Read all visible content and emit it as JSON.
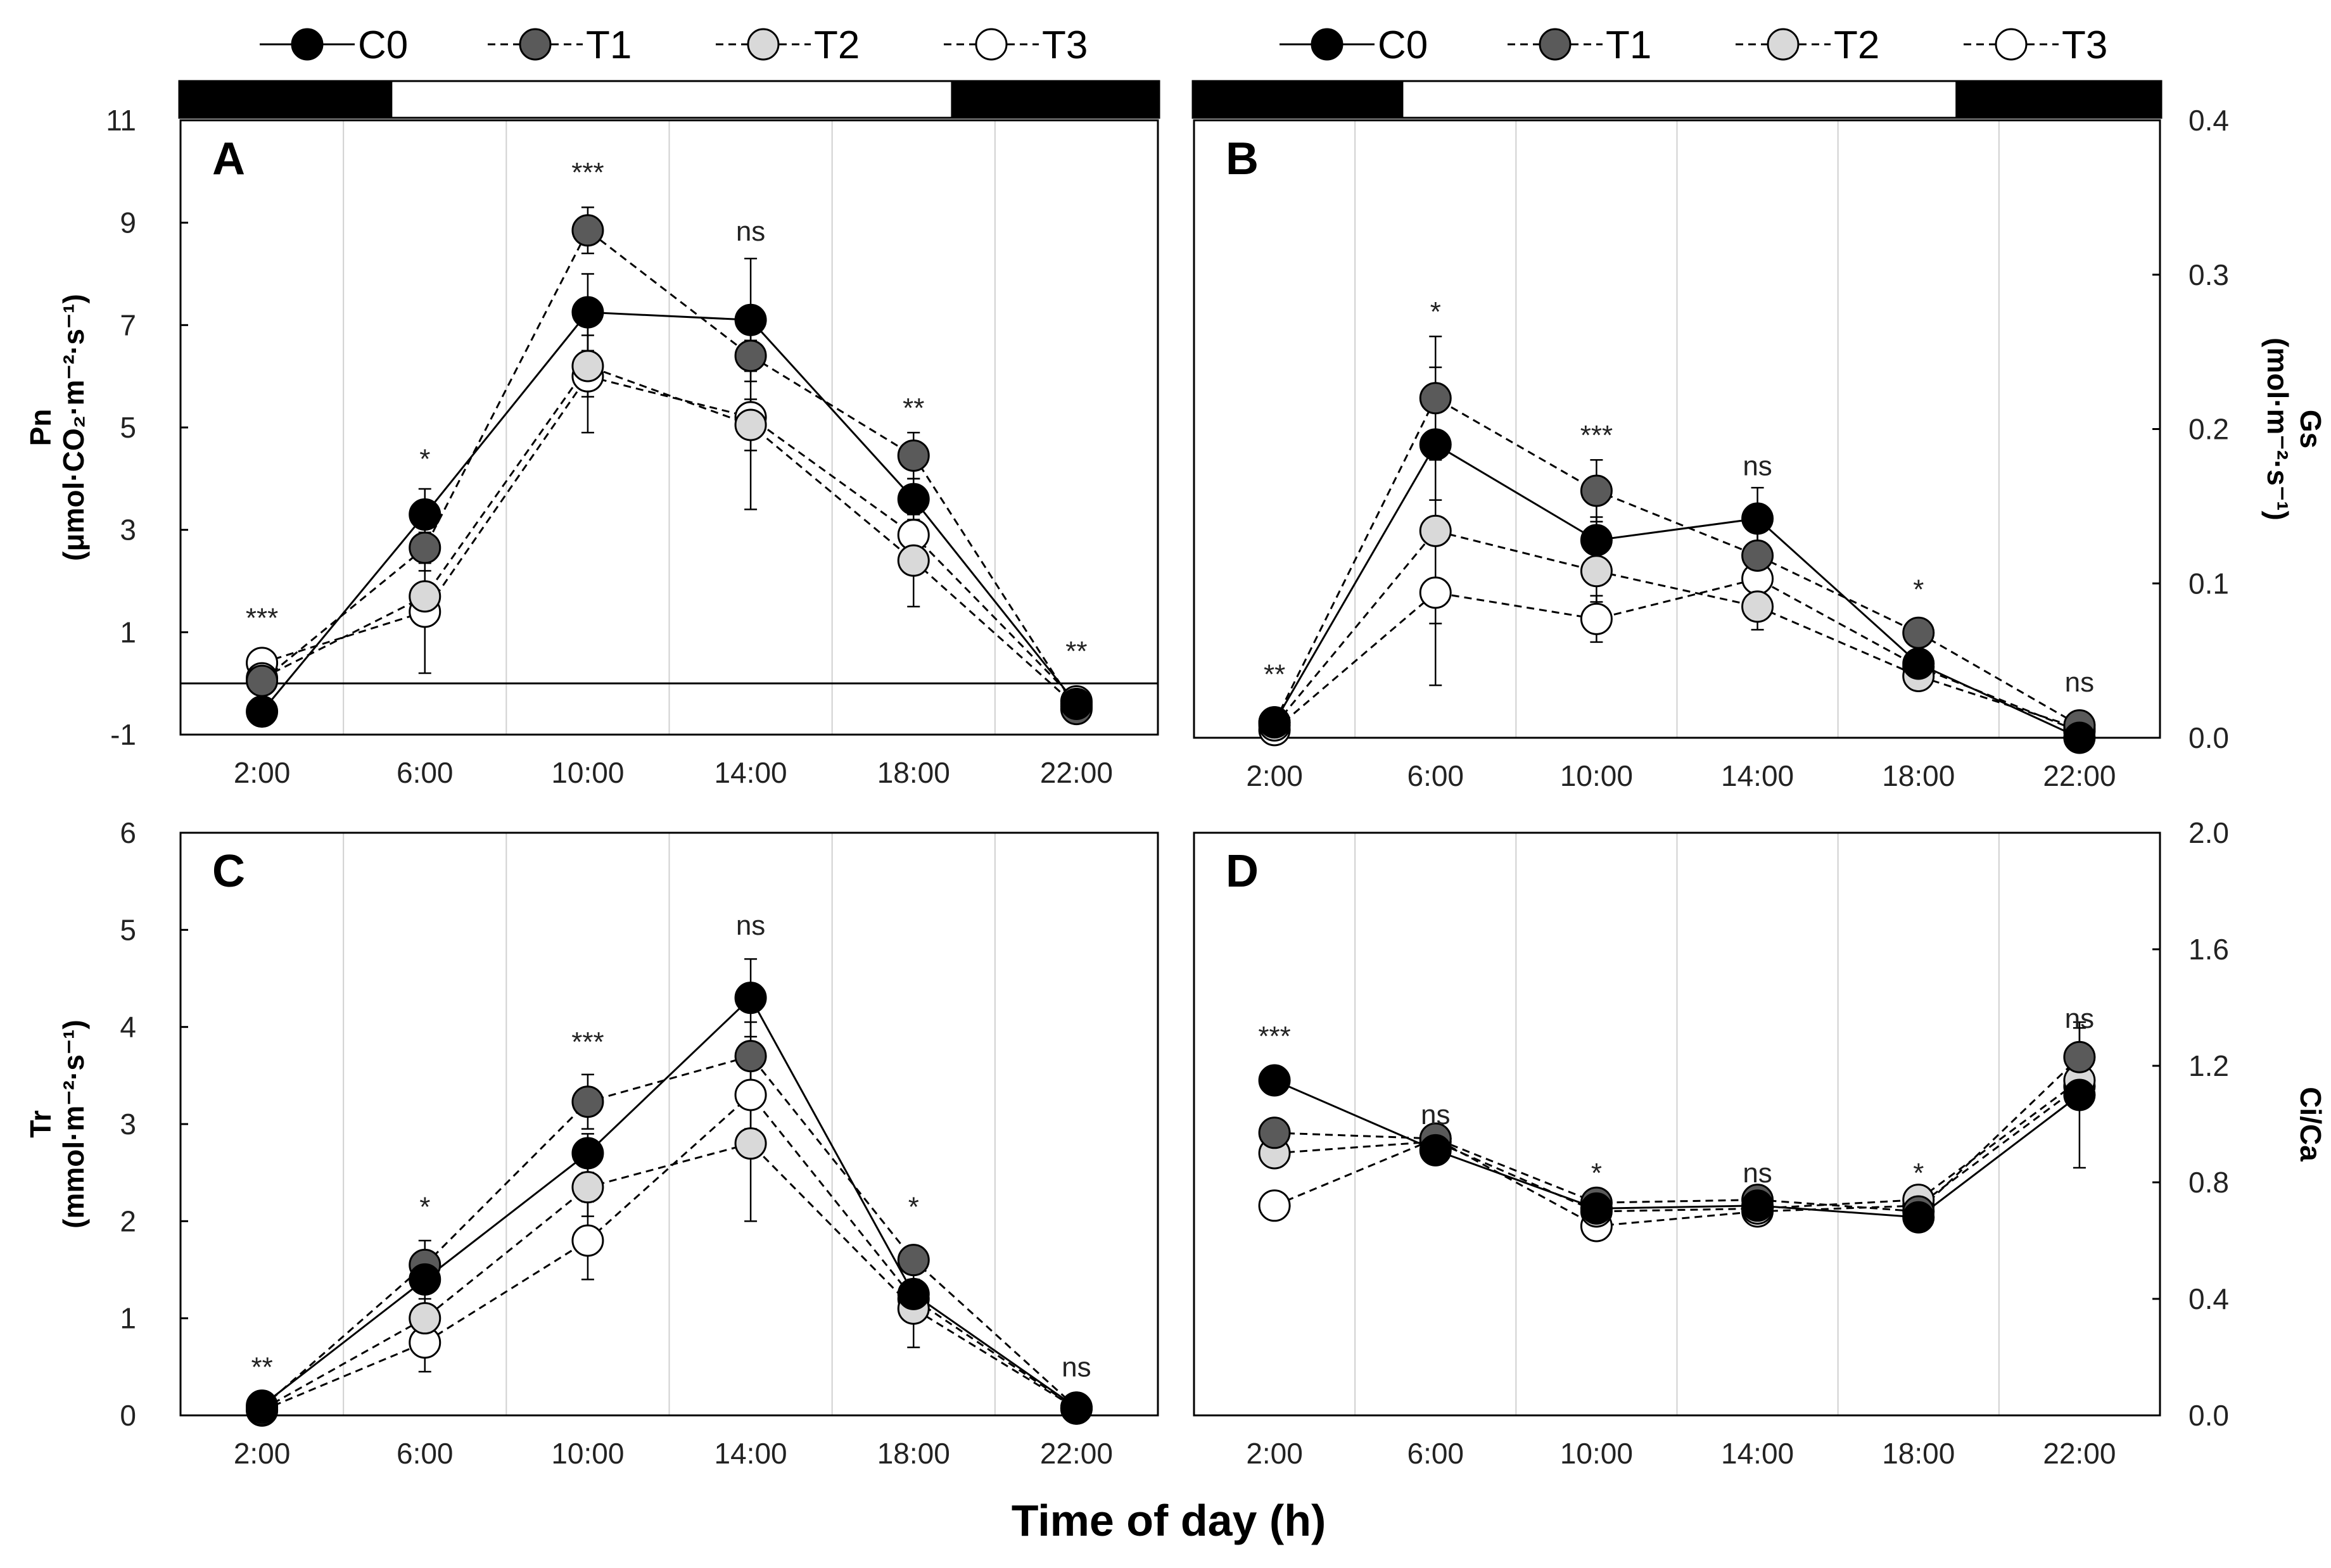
{
  "figure": {
    "x_title": "Time of day (h)",
    "legend": [
      {
        "name": "C0",
        "fill": "#000000",
        "dash": "solid"
      },
      {
        "name": "T1",
        "fill": "#5a5a5a",
        "dash": "dashed"
      },
      {
        "name": "T2",
        "fill": "#d9d9d9",
        "dash": "dashed"
      },
      {
        "name": "T3",
        "fill": "#ffffff",
        "dash": "dashed"
      }
    ],
    "photoperiod": {
      "dark_before": "2:00-6:00",
      "light": "6:00-18:00",
      "dark_after": "18:00-22:00"
    }
  },
  "chart_data": [
    {
      "panel": "A",
      "type": "line",
      "categories": [
        "2:00",
        "6:00",
        "10:00",
        "14:00",
        "18:00",
        "22:00"
      ],
      "ylabel_line1": "Pn",
      "ylabel_line2": "(μmol·CO₂·m⁻²·s⁻¹)",
      "ylim": [
        -1,
        11
      ],
      "yticks": [
        -1,
        1,
        3,
        5,
        7,
        9,
        11
      ],
      "ytick_labels": [
        "-1",
        "1",
        "3",
        "5",
        "7",
        "9",
        "11"
      ],
      "zero_line": true,
      "axis_side": "left",
      "series": [
        {
          "name": "C0",
          "values": [
            -0.55,
            3.3,
            7.25,
            7.1,
            3.6,
            -0.4
          ],
          "errors": [
            0.1,
            0.5,
            0.75,
            1.2,
            0.4,
            0.1
          ]
        },
        {
          "name": "T1",
          "values": [
            0.05,
            2.65,
            8.85,
            6.4,
            4.45,
            -0.5
          ],
          "errors": [
            0.1,
            0.3,
            0.45,
            0.3,
            0.45,
            0.1
          ]
        },
        {
          "name": "T2",
          "values": [
            0.1,
            1.7,
            6.2,
            5.05,
            2.4,
            -0.45
          ],
          "errors": [
            0.1,
            0.5,
            0.6,
            0.5,
            0.9,
            0.1
          ]
        },
        {
          "name": "T3",
          "values": [
            0.4,
            1.4,
            6.0,
            5.2,
            2.9,
            -0.35
          ],
          "errors": [
            0.1,
            1.2,
            1.1,
            1.8,
            0.4,
            0.1
          ]
        }
      ],
      "annotations": [
        {
          "x": "2:00",
          "text": "***",
          "y": 1.1
        },
        {
          "x": "6:00",
          "text": "*",
          "y": 4.2
        },
        {
          "x": "10:00",
          "text": "***",
          "y": 9.8
        },
        {
          "x": "14:00",
          "text": "ns",
          "y": 8.65
        },
        {
          "x": "18:00",
          "text": "**",
          "y": 5.2
        },
        {
          "x": "22:00",
          "text": "**",
          "y": 0.45
        }
      ]
    },
    {
      "panel": "B",
      "type": "line",
      "categories": [
        "2:00",
        "6:00",
        "10:00",
        "14:00",
        "18:00",
        "22:00"
      ],
      "ylabel_line1": "Gs",
      "ylabel_line2": "(mol·m⁻²·s⁻¹)",
      "ylim": [
        0,
        0.4
      ],
      "yticks": [
        0,
        0.1,
        0.2,
        0.3,
        0.4
      ],
      "ytick_labels": [
        "0.0",
        "0.1",
        "0.2",
        "0.3",
        "0.4"
      ],
      "zero_line": false,
      "axis_side": "right",
      "series": [
        {
          "name": "C0",
          "values": [
            0.01,
            0.19,
            0.128,
            0.142,
            0.048,
            0.0
          ],
          "errors": [
            0.003,
            0.05,
            0.015,
            0.02,
            0.005,
            0.002
          ]
        },
        {
          "name": "T1",
          "values": [
            0.01,
            0.22,
            0.16,
            0.118,
            0.068,
            0.008
          ],
          "errors": [
            0.003,
            0.04,
            0.02,
            0.02,
            0.005,
            0.002
          ]
        },
        {
          "name": "T2",
          "values": [
            0.008,
            0.134,
            0.108,
            0.085,
            0.04,
            0.006
          ],
          "errors": [
            0.003,
            0.06,
            0.02,
            0.015,
            0.005,
            0.002
          ]
        },
        {
          "name": "T3",
          "values": [
            0.005,
            0.094,
            0.077,
            0.103,
            0.046,
            0.004
          ],
          "errors": [
            0.003,
            0.06,
            0.015,
            0.02,
            0.005,
            0.002
          ]
        }
      ],
      "annotations": [
        {
          "x": "2:00",
          "text": "**",
          "y": 0.035
        },
        {
          "x": "6:00",
          "text": "*",
          "y": 0.27
        },
        {
          "x": "10:00",
          "text": "***",
          "y": 0.19
        },
        {
          "x": "14:00",
          "text": "ns",
          "y": 0.17
        },
        {
          "x": "18:00",
          "text": "*",
          "y": 0.09
        },
        {
          "x": "22:00",
          "text": "ns",
          "y": 0.03
        }
      ]
    },
    {
      "panel": "C",
      "type": "line",
      "categories": [
        "2:00",
        "6:00",
        "10:00",
        "14:00",
        "18:00",
        "22:00"
      ],
      "ylabel_line1": "Tr",
      "ylabel_line2": "(mmol·m⁻²·s⁻¹)",
      "ylim": [
        0,
        6
      ],
      "yticks": [
        0,
        1,
        2,
        3,
        4,
        5,
        6
      ],
      "ytick_labels": [
        "0",
        "1",
        "2",
        "3",
        "4",
        "5",
        "6"
      ],
      "zero_line": false,
      "axis_side": "left",
      "series": [
        {
          "name": "C0",
          "values": [
            0.1,
            1.4,
            2.7,
            4.3,
            1.25,
            0.08
          ],
          "errors": [
            0.03,
            0.2,
            0.2,
            0.4,
            0.1,
            0.02
          ]
        },
        {
          "name": "T1",
          "values": [
            0.08,
            1.55,
            3.23,
            3.7,
            1.6,
            0.08
          ],
          "errors": [
            0.03,
            0.25,
            0.28,
            0.35,
            0.1,
            0.02
          ]
        },
        {
          "name": "T2",
          "values": [
            0.06,
            1.0,
            2.35,
            2.8,
            1.1,
            0.07
          ],
          "errors": [
            0.03,
            0.3,
            0.3,
            0.8,
            0.4,
            0.02
          ]
        },
        {
          "name": "T3",
          "values": [
            0.05,
            0.75,
            1.8,
            3.3,
            1.2,
            0.07
          ],
          "errors": [
            0.03,
            0.3,
            0.4,
            0.35,
            0.2,
            0.02
          ]
        }
      ],
      "annotations": [
        {
          "x": "2:00",
          "text": "**",
          "y": 0.4
        },
        {
          "x": "6:00",
          "text": "*",
          "y": 2.05
        },
        {
          "x": "10:00",
          "text": "***",
          "y": 3.75
        },
        {
          "x": "14:00",
          "text": "ns",
          "y": 4.95
        },
        {
          "x": "18:00",
          "text": "*",
          "y": 2.05
        },
        {
          "x": "22:00",
          "text": "ns",
          "y": 0.4
        }
      ]
    },
    {
      "panel": "D",
      "type": "line",
      "categories": [
        "2:00",
        "6:00",
        "10:00",
        "14:00",
        "18:00",
        "22:00"
      ],
      "ylabel_line1": "Ci/Ca",
      "ylabel_line2": "",
      "ylim": [
        0,
        2.0
      ],
      "yticks": [
        0,
        0.4,
        0.8,
        1.2,
        1.6,
        2.0
      ],
      "ytick_labels": [
        "0.0",
        "0.4",
        "0.8",
        "1.2",
        "1.6",
        "2.0"
      ],
      "zero_line": false,
      "axis_side": "right",
      "series": [
        {
          "name": "C0",
          "values": [
            1.15,
            0.91,
            0.71,
            0.72,
            0.68,
            1.1
          ],
          "errors": [
            0.03,
            0.03,
            0.03,
            0.03,
            0.03,
            0.25
          ]
        },
        {
          "name": "T1",
          "values": [
            0.97,
            0.95,
            0.73,
            0.74,
            0.7,
            1.23
          ],
          "errors": [
            0.03,
            0.03,
            0.03,
            0.03,
            0.03,
            0.1
          ]
        },
        {
          "name": "T2",
          "values": [
            0.9,
            0.94,
            0.7,
            0.71,
            0.74,
            1.15
          ],
          "errors": [
            0.03,
            0.03,
            0.03,
            0.03,
            0.03,
            0.05
          ]
        },
        {
          "name": "T3",
          "values": [
            0.72,
            0.95,
            0.65,
            0.7,
            0.72,
            1.13
          ],
          "errors": [
            0.04,
            0.03,
            0.03,
            0.03,
            0.03,
            0.05
          ]
        }
      ],
      "annotations": [
        {
          "x": "2:00",
          "text": "***",
          "y": 1.27
        },
        {
          "x": "6:00",
          "text": "ns",
          "y": 1.0
        },
        {
          "x": "10:00",
          "text": "*",
          "y": 0.8
        },
        {
          "x": "14:00",
          "text": "ns",
          "y": 0.8
        },
        {
          "x": "18:00",
          "text": "*",
          "y": 0.8
        },
        {
          "x": "22:00",
          "text": "ns",
          "y": 1.33
        }
      ]
    }
  ]
}
